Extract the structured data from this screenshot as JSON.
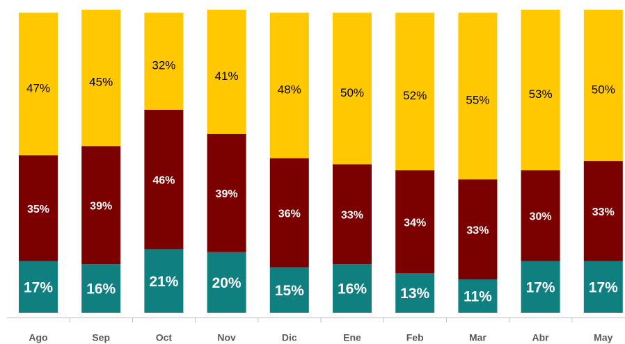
{
  "chart_data": {
    "type": "stacked_bar",
    "categories": [
      "Ago",
      "Sep",
      "Oct",
      "Nov",
      "Dic",
      "Ene",
      "Feb",
      "Mar",
      "Abr",
      "May"
    ],
    "ylim": [
      0,
      100
    ],
    "series": [
      {
        "color": "#0f7f7f",
        "values": [
          17,
          16,
          21,
          20,
          15,
          16,
          13,
          11,
          17,
          17
        ],
        "value_labels": [
          "17%",
          "16%",
          "21%",
          "20%",
          "15%",
          "16%",
          "13%",
          "11%",
          "17%",
          "17%"
        ]
      },
      {
        "color": "#7b0000",
        "values": [
          35,
          39,
          46,
          39,
          36,
          33,
          34,
          33,
          30,
          33
        ],
        "value_labels": [
          "35%",
          "39%",
          "46%",
          "39%",
          "36%",
          "33%",
          "34%",
          "33%",
          "30%",
          "33%"
        ]
      },
      {
        "color": "#ffc800",
        "values": [
          47,
          45,
          32,
          41,
          48,
          50,
          52,
          55,
          53,
          50
        ],
        "value_labels": [
          "47%",
          "45%",
          "32%",
          "41%",
          "48%",
          "50%",
          "52%",
          "55%",
          "53%",
          "50%"
        ]
      }
    ]
  }
}
